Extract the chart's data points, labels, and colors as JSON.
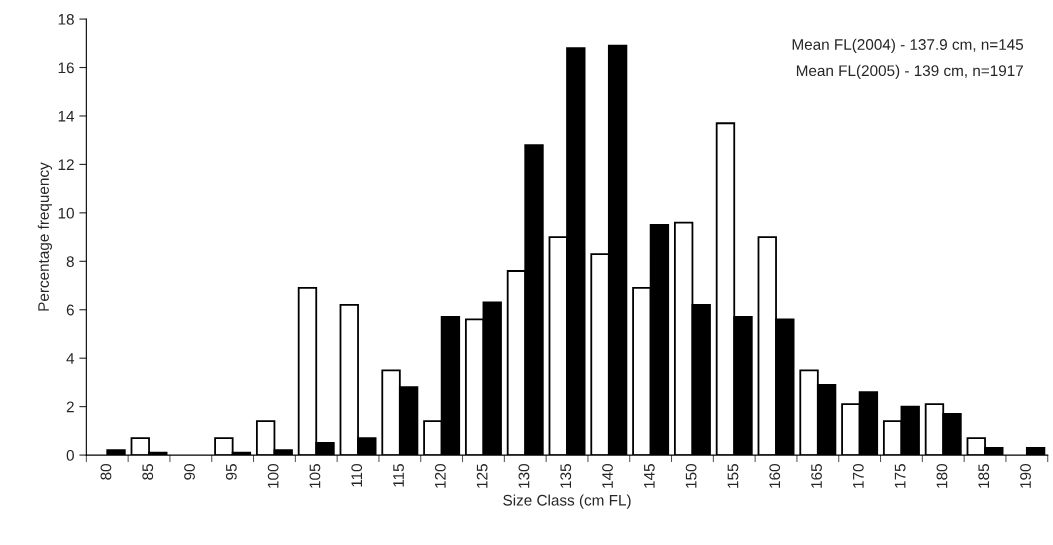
{
  "chart_data": {
    "type": "bar",
    "xlabel": "Size Class (cm FL)",
    "ylabel": "Percentage frequency",
    "categories": [
      "80",
      "85",
      "90",
      "95",
      "100",
      "105",
      "110",
      "115",
      "120",
      "125",
      "130",
      "135",
      "140",
      "145",
      "150",
      "155",
      "160",
      "165",
      "170",
      "175",
      "180",
      "185",
      "190"
    ],
    "series": [
      {
        "color": "#ffffff",
        "values": [
          0,
          0.7,
          0,
          0.7,
          1.4,
          6.9,
          6.2,
          3.5,
          1.4,
          5.6,
          7.6,
          9.0,
          8.3,
          6.9,
          9.6,
          13.7,
          9.0,
          3.5,
          2.1,
          1.4,
          2.1,
          0.7,
          0
        ]
      },
      {
        "color": "#000000",
        "values": [
          0.2,
          0.1,
          0,
          0.1,
          0.2,
          0.5,
          0.7,
          2.8,
          5.7,
          6.3,
          12.8,
          16.8,
          16.9,
          9.5,
          6.2,
          5.7,
          5.6,
          2.9,
          2.6,
          2.0,
          1.7,
          0.3,
          0.3
        ]
      }
    ],
    "ylim": [
      0,
      18
    ],
    "yticks": [
      0,
      2,
      4,
      6,
      8,
      10,
      12,
      14,
      16,
      18
    ],
    "grid": false,
    "annotations": [
      "Mean FL(2004) - 137.9 cm, n=145",
      "Mean FL(2005) - 139 cm, n=1917"
    ]
  }
}
